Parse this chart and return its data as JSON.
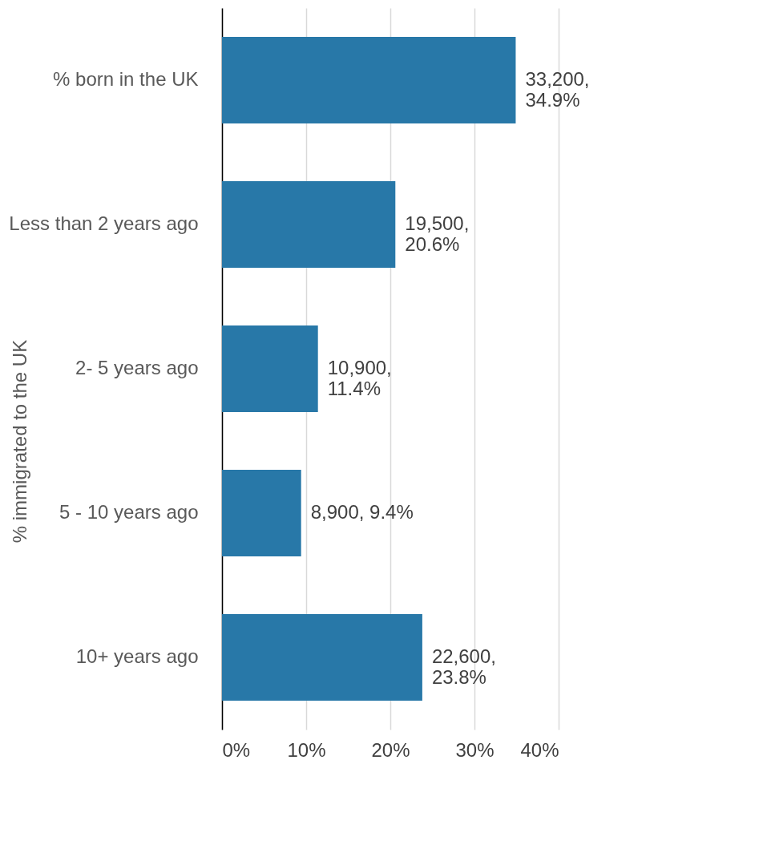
{
  "chart_data": {
    "type": "bar",
    "orientation": "horizontal",
    "categories": [
      "% born in the UK",
      "Less than 2 years ago",
      "2- 5 years ago",
      "5 - 10 years ago",
      "10+ years ago"
    ],
    "ylabel": "% immigrated to the UK",
    "values": [
      34.9,
      20.6,
      11.4,
      9.4,
      23.8
    ],
    "value_labels": [
      "33,200,\n34.9%",
      "19,500,\n20.6%",
      "10,900,\n11.4%",
      "8,900, 9.4%",
      "22,600,\n23.8%"
    ],
    "color": "#2878a8",
    "xlim": [
      0,
      40
    ],
    "xticks": [
      {
        "value": 0,
        "label": "0%"
      },
      {
        "value": 10,
        "label": "10%"
      },
      {
        "value": 20,
        "label": "20%"
      },
      {
        "value": 30,
        "label": "30%"
      },
      {
        "value": 40,
        "label": "40%"
      }
    ],
    "grid": "x"
  }
}
